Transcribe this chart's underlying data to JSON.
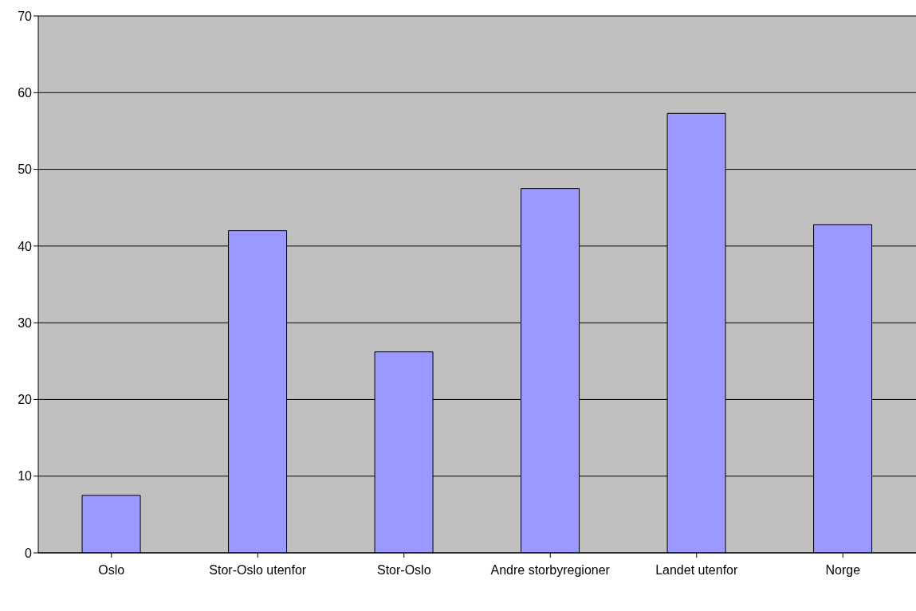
{
  "chart_data": {
    "type": "bar",
    "categories": [
      "Oslo",
      "Stor-Oslo utenfor",
      "Stor-Oslo",
      "Andre storbyregioner",
      "Landet utenfor",
      "Norge"
    ],
    "values": [
      7.5,
      42.0,
      26.2,
      47.5,
      57.3,
      42.8
    ],
    "color": "#9999ff",
    "ylim": [
      0,
      70
    ],
    "yticks": [
      0,
      10,
      20,
      30,
      40,
      50,
      60,
      70
    ],
    "grid": "y",
    "legend": false
  }
}
